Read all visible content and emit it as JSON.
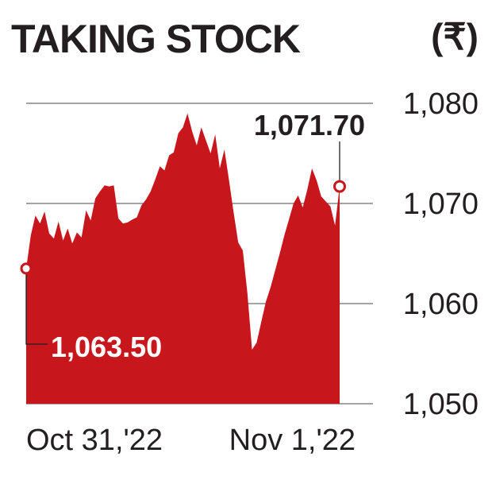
{
  "chart_data": {
    "type": "area",
    "title": "TAKING STOCK",
    "unit": "(₹)",
    "ylim": [
      1050,
      1080
    ],
    "yticks": [
      "1,080",
      "1,070",
      "1,060",
      "1,050"
    ],
    "ytick_values": [
      1080,
      1070,
      1060,
      1050
    ],
    "xticks": [
      "Oct 31,'22",
      "Nov 1,'22"
    ],
    "grid": true,
    "color": "#c8161d",
    "annotations": {
      "start_label": "1,063.50",
      "start_value": 1063.5,
      "end_label": "1,071.70",
      "end_value": 1071.7
    },
    "series": [
      {
        "values": [
          1063.5,
          1066.8,
          1068.8,
          1068.0,
          1069.2,
          1067.0,
          1066.5,
          1068.2,
          1066.3,
          1067.5,
          1066.0,
          1067.1,
          1066.6,
          1069.3,
          1068.3,
          1070.5,
          1071.2,
          1071.8,
          1071.7,
          1071.8,
          1068.5,
          1068.0,
          1068.1,
          1068.4,
          1068.6,
          1069.8,
          1070.4,
          1071.2,
          1072.4,
          1073.7,
          1073.3,
          1074.8,
          1075.1,
          1077.0,
          1077.6,
          1079.0,
          1077.2,
          1075.8,
          1077.6,
          1076.3,
          1075.0,
          1076.9,
          1073.5,
          1075.4,
          1072.3,
          1069.1,
          1066.1,
          1065.3,
          1061.0,
          1055.4,
          1056.1,
          1058.2,
          1060.2,
          1061.6,
          1063.3,
          1065.0,
          1066.8,
          1068.4,
          1070.0,
          1070.8,
          1069.6,
          1071.4,
          1073.5,
          1072.3,
          1070.7,
          1070.2,
          1069.7,
          1067.8,
          1071.7
        ]
      }
    ]
  }
}
